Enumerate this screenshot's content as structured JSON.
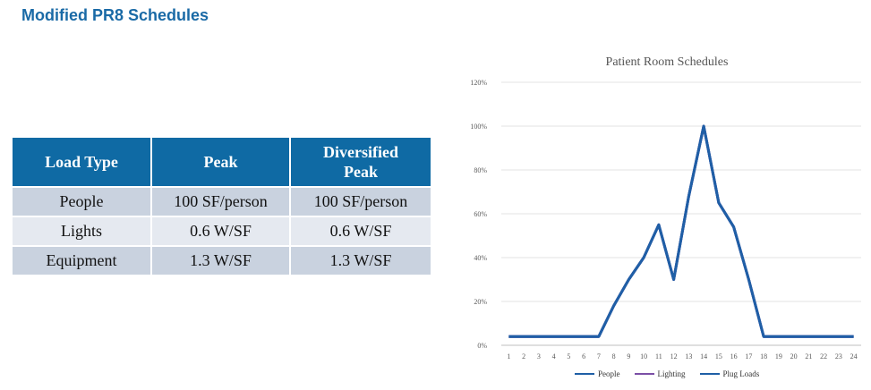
{
  "slide": {
    "title": "Modified PR8 Schedules"
  },
  "table": {
    "headers": [
      "Load Type",
      "Peak",
      "Diversified Peak"
    ],
    "rows": [
      [
        "People",
        "100 SF/person",
        "100 SF/person"
      ],
      [
        "Lights",
        "0.6 W/SF",
        "0.6 W/SF"
      ],
      [
        "Equipment",
        "1.3 W/SF",
        "1.3 W/SF"
      ]
    ],
    "header_color": "#0f6aa4"
  },
  "chart_data": {
    "type": "line",
    "title": "Patient Room Schedules",
    "xlabel": "",
    "ylabel": "",
    "x": [
      1,
      2,
      3,
      4,
      5,
      6,
      7,
      8,
      9,
      10,
      11,
      12,
      13,
      14,
      15,
      16,
      17,
      18,
      19,
      20,
      21,
      22,
      23,
      24
    ],
    "y_ticks": [
      "0%",
      "20%",
      "40%",
      "60%",
      "80%",
      "100%",
      "120%"
    ],
    "ylim": [
      0,
      1.2
    ],
    "grid": true,
    "legend_position": "bottom",
    "series": [
      {
        "name": "People",
        "color": "#1f5fa6",
        "values": [
          0.04,
          0.04,
          0.04,
          0.04,
          0.04,
          0.04,
          0.04,
          0.18,
          0.3,
          0.4,
          0.55,
          0.3,
          0.68,
          1.0,
          0.65,
          0.54,
          0.3,
          0.04,
          0.04,
          0.04,
          0.04,
          0.04,
          0.04,
          0.04
        ]
      },
      {
        "name": "Lighting",
        "color": "#7b4fa6",
        "values": [
          0.04,
          0.04,
          0.04,
          0.04,
          0.04,
          0.04,
          0.04,
          0.18,
          0.3,
          0.4,
          0.55,
          0.3,
          0.68,
          1.0,
          0.65,
          0.54,
          0.3,
          0.04,
          0.04,
          0.04,
          0.04,
          0.04,
          0.04,
          0.04
        ]
      },
      {
        "name": "Plug Loads",
        "color": "#1f5fa6",
        "values": [
          0.04,
          0.04,
          0.04,
          0.04,
          0.04,
          0.04,
          0.04,
          0.18,
          0.3,
          0.4,
          0.55,
          0.3,
          0.68,
          1.0,
          0.65,
          0.54,
          0.3,
          0.04,
          0.04,
          0.04,
          0.04,
          0.04,
          0.04,
          0.04
        ]
      }
    ]
  }
}
